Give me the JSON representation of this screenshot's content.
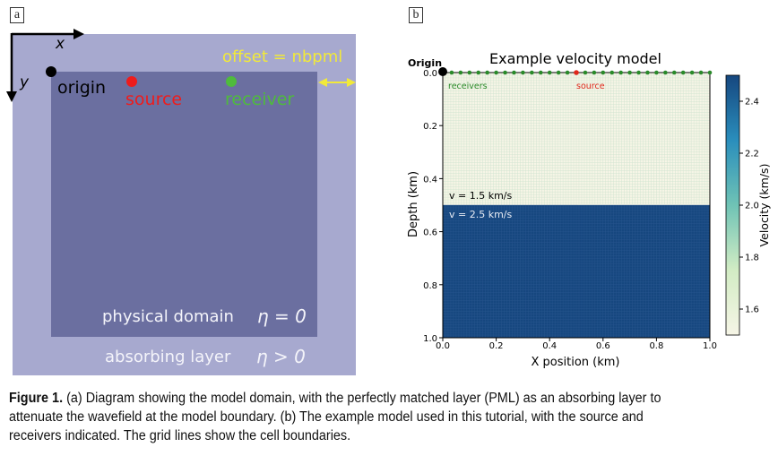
{
  "panel_a": {
    "label": "a",
    "axis_x": "x",
    "axis_y": "y",
    "origin": "origin",
    "source": "source",
    "receiver": "receiver",
    "offset": "offset = nbpml",
    "physical_domain": "physical domain",
    "physical_eta": "η = 0",
    "absorbing_layer": "absorbing layer",
    "absorbing_eta": "η > 0",
    "colors": {
      "outer": "#a7a9cf",
      "inner": "#6b6fa0",
      "source": "#ee1c1c",
      "receiver": "#4fbb3c",
      "offset": "#f1e93a"
    }
  },
  "panel_b": {
    "label": "b",
    "origin_label": "Origin",
    "receivers_label": "receivers",
    "source_label": "source",
    "upper_layer_label": "v = 1.5 km/s",
    "lower_layer_label": "v = 2.5 km/s",
    "colorbar_label": "Velocity (km/s)",
    "colorbar_ticks": [
      "2.4",
      "2.2",
      "2.0",
      "1.8",
      "1.6"
    ],
    "colors": {
      "upper": "#f6f5e6",
      "lower": "#16477f",
      "grid_upper": "#cfe3cf",
      "receivers": "#2a8a2a",
      "source": "#e0271b"
    }
  },
  "chart_data": {
    "type": "heatmap",
    "title": "Example velocity model",
    "xlabel": "X position (km)",
    "ylabel": "Depth (km)",
    "xlim": [
      0.0,
      1.0
    ],
    "ylim": [
      1.0,
      0.0
    ],
    "x_ticks": [
      "0.0",
      "0.2",
      "0.4",
      "0.6",
      "0.8",
      "1.0"
    ],
    "y_ticks": [
      "0.0",
      "0.2",
      "0.4",
      "0.6",
      "0.8",
      "1.0"
    ],
    "layers": [
      {
        "depth_top": 0.0,
        "depth_bottom": 0.5,
        "velocity": 1.5
      },
      {
        "depth_top": 0.5,
        "depth_bottom": 1.0,
        "velocity": 2.5
      }
    ],
    "source": {
      "x": 0.5,
      "depth": 0.0
    },
    "receivers": {
      "depth": 0.0,
      "x_start": 0.0,
      "x_end": 1.0,
      "count": 31
    },
    "colorbar": {
      "label": "Velocity (km/s)",
      "range": [
        1.5,
        2.5
      ],
      "ticks": [
        1.6,
        1.8,
        2.0,
        2.2,
        2.4
      ]
    },
    "grid": true
  },
  "caption": {
    "figure_label": "Figure 1.",
    "line1": " (a) Diagram showing the model domain, with the perfectly matched layer (PML) as an absorbing layer to",
    "line2": "attenuate the wavefield at the model boundary. (b) The example model used in this tutorial, with the source and",
    "line3": "receivers indicated. The grid lines show the cell boundaries."
  }
}
